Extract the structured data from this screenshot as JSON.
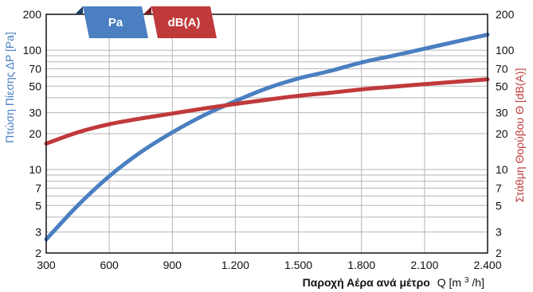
{
  "chart_data": {
    "type": "line",
    "title": "",
    "xlabel": "Παροχή Αέρα ανά μέτρο Q [m³/h]",
    "xlabel_main": "Παροχή Αέρα ανά μέτρο",
    "xlabel_symbol": "Q [m",
    "xlabel_sup": "3",
    "xlabel_tail": "/h]",
    "ylabel_left": "Πτώση Πίεσης ΔP [Pa]",
    "ylabel_right": "Στάθμη Θορύβου Θ [dB(A)]",
    "x_ticks": [
      "300",
      "600",
      "900",
      "1.200",
      "1.500",
      "1.800",
      "2.100",
      "2.400"
    ],
    "x_tick_values": [
      300,
      600,
      900,
      1200,
      1500,
      1800,
      2100,
      2400
    ],
    "y_scale": "log",
    "ylim": [
      2,
      200
    ],
    "xlim": [
      300,
      2400
    ],
    "y_ticks": [
      "2",
      "3",
      "5",
      "7",
      "10",
      "20",
      "30",
      "50",
      "70",
      "100",
      "200"
    ],
    "y_tick_values": [
      2,
      3,
      5,
      7,
      10,
      20,
      30,
      50,
      70,
      100,
      200
    ],
    "grid": true,
    "legend": [
      "Pa",
      "dB(A)"
    ],
    "series": [
      {
        "name": "Pa",
        "axis": "left",
        "color": "#4a7fc1",
        "x": [
          300,
          450,
          600,
          750,
          900,
          1050,
          1200,
          1350,
          1500,
          1650,
          1800,
          1950,
          2100,
          2250,
          2400
        ],
        "y": [
          2.6,
          5.0,
          8.8,
          14,
          20.5,
          28.5,
          37.5,
          48,
          58,
          67,
          79,
          90,
          103,
          118,
          135
        ]
      },
      {
        "name": "dB(A)",
        "axis": "right",
        "color": "#c0393b",
        "x": [
          300,
          450,
          600,
          750,
          900,
          1050,
          1200,
          1350,
          1500,
          1650,
          1800,
          1950,
          2100,
          2250,
          2400
        ],
        "y": [
          16.5,
          20.5,
          24.0,
          26.8,
          29.5,
          32.5,
          35.5,
          38.5,
          41.5,
          44.0,
          47.0,
          49.5,
          52.0,
          54.5,
          57.0
        ]
      }
    ]
  }
}
